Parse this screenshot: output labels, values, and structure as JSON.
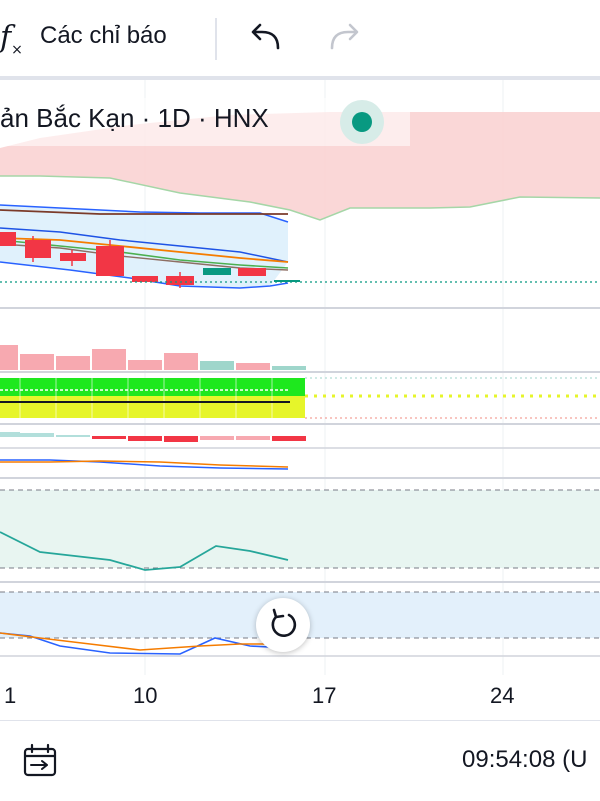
{
  "toolbar": {
    "indicators_label": "Các chỉ báo",
    "fx_icon": "function-icon",
    "undo_icon": "undo-icon",
    "redo_icon": "redo-icon"
  },
  "symbol": {
    "text": "ản Bắc Kạn · 1D · HNX",
    "status_color": "#089981"
  },
  "x_axis": {
    "labels": [
      "1",
      "10",
      "17",
      "24"
    ]
  },
  "footer": {
    "time": "09:54:08 (U",
    "calendar_icon": "calendar-range-icon"
  },
  "colors": {
    "up": "#089981",
    "down": "#f23645",
    "cloud": "#f9d3d3",
    "bands": "#dbeefb",
    "rsi_bg": "#e8f5f1",
    "stoch_bg": "#e3f0fb",
    "green_fill": "#1ee81e",
    "yellow_fill": "#e6f52a"
  }
}
